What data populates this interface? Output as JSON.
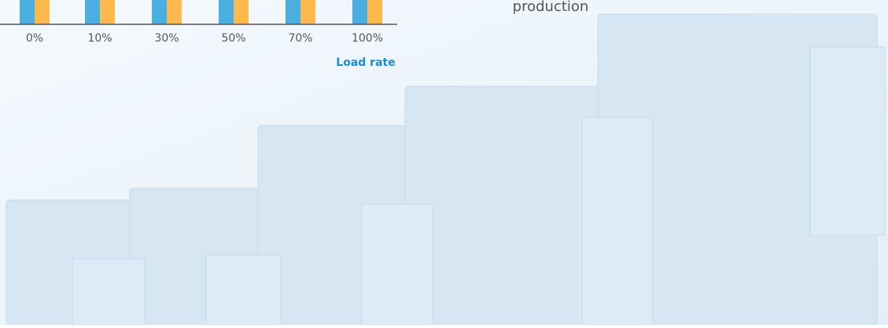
{
  "chart": {
    "categories": [
      "0%",
      "10%",
      "30%",
      "50%",
      "70%",
      "100%"
    ],
    "x_label": "Load rate"
  },
  "caption": "production"
}
